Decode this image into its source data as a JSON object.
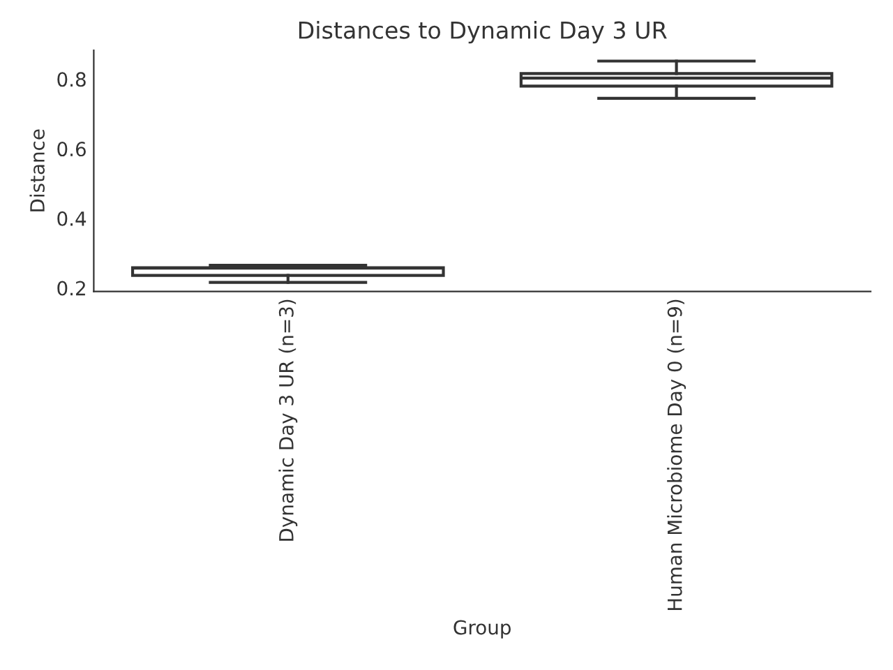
{
  "chart_data": {
    "type": "box",
    "title": "Distances to Dynamic Day 3 UR",
    "xlabel": "Group",
    "ylabel": "Distance",
    "categories": [
      "Dynamic Day 3 UR (n=3)",
      "Human Microbiome Day 0 (n=9)"
    ],
    "boxes": [
      {
        "low": 0.216,
        "q1": 0.236,
        "median": 0.257,
        "q3": 0.258,
        "high": 0.265
      },
      {
        "low": 0.745,
        "q1": 0.78,
        "median": 0.803,
        "q3": 0.816,
        "high": 0.852
      }
    ],
    "ylim": [
      0.19,
      0.883
    ],
    "yticks": [
      0.2,
      0.4,
      0.6,
      0.8
    ],
    "grid": false
  }
}
